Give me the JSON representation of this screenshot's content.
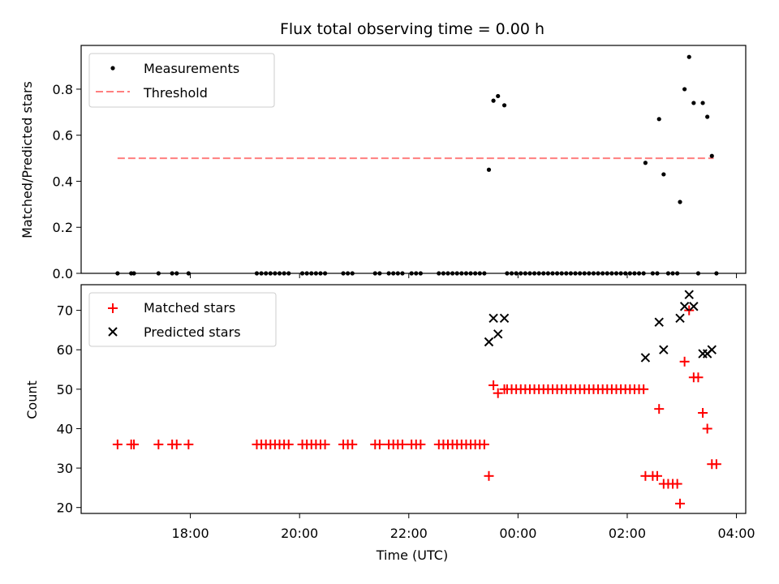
{
  "title": "Flux total observing time = 0.00 h",
  "chart_data": [
    {
      "type": "scatter",
      "panel": "top",
      "ylabel": "Matched/Predicted stars",
      "ylim": [
        0,
        0.99
      ],
      "yticks": [
        "0.0",
        "0.2",
        "0.4",
        "0.6",
        "0.8"
      ],
      "x_unit": "hours",
      "xlim": [
        16.0,
        4.17
      ],
      "legend": {
        "placement": "top-left",
        "entries": [
          "Measurements",
          "Threshold"
        ]
      },
      "threshold": {
        "name": "Threshold",
        "value": 0.5,
        "x_start": "16:40",
        "x_end": "03:35",
        "color": "#ff7f7f"
      },
      "series": [
        {
          "name": "Measurements",
          "color": "#000000",
          "points": [
            [
              "16:40",
              0
            ],
            [
              "16:55",
              0
            ],
            [
              "16:58",
              0
            ],
            [
              "17:25",
              0
            ],
            [
              "17:40",
              0
            ],
            [
              "17:45",
              0
            ],
            [
              "17:58",
              0
            ],
            [
              "19:13",
              0
            ],
            [
              "19:18",
              0
            ],
            [
              "19:23",
              0
            ],
            [
              "19:28",
              0
            ],
            [
              "19:33",
              0
            ],
            [
              "19:38",
              0
            ],
            [
              "19:43",
              0
            ],
            [
              "19:48",
              0
            ],
            [
              "20:03",
              0
            ],
            [
              "20:08",
              0
            ],
            [
              "20:13",
              0
            ],
            [
              "20:18",
              0
            ],
            [
              "20:23",
              0
            ],
            [
              "20:28",
              0
            ],
            [
              "20:48",
              0
            ],
            [
              "20:53",
              0
            ],
            [
              "20:58",
              0
            ],
            [
              "21:23",
              0
            ],
            [
              "21:28",
              0
            ],
            [
              "21:38",
              0
            ],
            [
              "21:43",
              0
            ],
            [
              "21:48",
              0
            ],
            [
              "21:53",
              0
            ],
            [
              "22:03",
              0
            ],
            [
              "22:08",
              0
            ],
            [
              "22:13",
              0
            ],
            [
              "22:33",
              0
            ],
            [
              "22:38",
              0
            ],
            [
              "22:43",
              0
            ],
            [
              "22:48",
              0
            ],
            [
              "22:53",
              0
            ],
            [
              "22:58",
              0
            ],
            [
              "23:03",
              0
            ],
            [
              "23:08",
              0
            ],
            [
              "23:13",
              0
            ],
            [
              "23:18",
              0
            ],
            [
              "23:23",
              0
            ],
            [
              "23:28",
              0.45
            ],
            [
              "23:33",
              0.75
            ],
            [
              "23:38",
              0.77
            ],
            [
              "23:45",
              0.73
            ],
            [
              "23:48",
              0
            ],
            [
              "23:53",
              0
            ],
            [
              "23:58",
              0
            ],
            [
              "00:03",
              0
            ],
            [
              "00:08",
              0
            ],
            [
              "00:13",
              0
            ],
            [
              "00:18",
              0
            ],
            [
              "00:23",
              0
            ],
            [
              "00:28",
              0
            ],
            [
              "00:33",
              0
            ],
            [
              "00:38",
              0
            ],
            [
              "00:43",
              0
            ],
            [
              "00:48",
              0
            ],
            [
              "00:53",
              0
            ],
            [
              "00:58",
              0
            ],
            [
              "01:03",
              0
            ],
            [
              "01:08",
              0
            ],
            [
              "01:13",
              0
            ],
            [
              "01:18",
              0
            ],
            [
              "01:23",
              0
            ],
            [
              "01:28",
              0
            ],
            [
              "01:33",
              0
            ],
            [
              "01:38",
              0
            ],
            [
              "01:43",
              0
            ],
            [
              "01:48",
              0
            ],
            [
              "01:53",
              0
            ],
            [
              "01:58",
              0
            ],
            [
              "02:03",
              0
            ],
            [
              "02:08",
              0
            ],
            [
              "02:13",
              0
            ],
            [
              "02:18",
              0
            ],
            [
              "02:20",
              0.48
            ],
            [
              "02:28",
              0
            ],
            [
              "02:33",
              0
            ],
            [
              "02:35",
              0.67
            ],
            [
              "02:40",
              0.43
            ],
            [
              "02:45",
              0
            ],
            [
              "02:50",
              0
            ],
            [
              "02:55",
              0
            ],
            [
              "02:58",
              0.31
            ],
            [
              "03:03",
              0.8
            ],
            [
              "03:08",
              0.94
            ],
            [
              "03:13",
              0.74
            ],
            [
              "03:18",
              0
            ],
            [
              "03:23",
              0.74
            ],
            [
              "03:28",
              0.68
            ],
            [
              "03:33",
              0.51
            ],
            [
              "03:38",
              0
            ]
          ]
        }
      ]
    },
    {
      "type": "scatter",
      "panel": "bottom",
      "xlabel": "Time (UTC)",
      "ylabel": "Count",
      "ylim": [
        18.5,
        76.5
      ],
      "yticks": [
        "20",
        "30",
        "40",
        "50",
        "60",
        "70"
      ],
      "xticks": [
        "18:00",
        "20:00",
        "22:00",
        "00:00",
        "02:00",
        "04:00"
      ],
      "legend": {
        "placement": "top-left",
        "entries": [
          "Matched stars",
          "Predicted stars"
        ]
      },
      "series": [
        {
          "name": "Matched stars",
          "marker": "+",
          "color": "#ff0000",
          "points": [
            [
              "16:40",
              36
            ],
            [
              "16:55",
              36
            ],
            [
              "16:58",
              36
            ],
            [
              "17:25",
              36
            ],
            [
              "17:40",
              36
            ],
            [
              "17:45",
              36
            ],
            [
              "17:58",
              36
            ],
            [
              "19:13",
              36
            ],
            [
              "19:18",
              36
            ],
            [
              "19:23",
              36
            ],
            [
              "19:28",
              36
            ],
            [
              "19:33",
              36
            ],
            [
              "19:38",
              36
            ],
            [
              "19:43",
              36
            ],
            [
              "19:48",
              36
            ],
            [
              "20:03",
              36
            ],
            [
              "20:08",
              36
            ],
            [
              "20:13",
              36
            ],
            [
              "20:18",
              36
            ],
            [
              "20:23",
              36
            ],
            [
              "20:28",
              36
            ],
            [
              "20:48",
              36
            ],
            [
              "20:53",
              36
            ],
            [
              "20:58",
              36
            ],
            [
              "21:23",
              36
            ],
            [
              "21:28",
              36
            ],
            [
              "21:38",
              36
            ],
            [
              "21:43",
              36
            ],
            [
              "21:48",
              36
            ],
            [
              "21:53",
              36
            ],
            [
              "22:03",
              36
            ],
            [
              "22:08",
              36
            ],
            [
              "22:13",
              36
            ],
            [
              "22:33",
              36
            ],
            [
              "22:38",
              36
            ],
            [
              "22:43",
              36
            ],
            [
              "22:48",
              36
            ],
            [
              "22:53",
              36
            ],
            [
              "22:58",
              36
            ],
            [
              "23:03",
              36
            ],
            [
              "23:08",
              36
            ],
            [
              "23:13",
              36
            ],
            [
              "23:18",
              36
            ],
            [
              "23:23",
              36
            ],
            [
              "23:28",
              28
            ],
            [
              "23:33",
              51
            ],
            [
              "23:38",
              49
            ],
            [
              "23:45",
              50
            ],
            [
              "23:48",
              50
            ],
            [
              "23:53",
              50
            ],
            [
              "23:58",
              50
            ],
            [
              "00:03",
              50
            ],
            [
              "00:08",
              50
            ],
            [
              "00:13",
              50
            ],
            [
              "00:18",
              50
            ],
            [
              "00:23",
              50
            ],
            [
              "00:28",
              50
            ],
            [
              "00:33",
              50
            ],
            [
              "00:38",
              50
            ],
            [
              "00:43",
              50
            ],
            [
              "00:48",
              50
            ],
            [
              "00:53",
              50
            ],
            [
              "00:58",
              50
            ],
            [
              "01:03",
              50
            ],
            [
              "01:08",
              50
            ],
            [
              "01:13",
              50
            ],
            [
              "01:18",
              50
            ],
            [
              "01:23",
              50
            ],
            [
              "01:28",
              50
            ],
            [
              "01:33",
              50
            ],
            [
              "01:38",
              50
            ],
            [
              "01:43",
              50
            ],
            [
              "01:48",
              50
            ],
            [
              "01:53",
              50
            ],
            [
              "01:58",
              50
            ],
            [
              "02:03",
              50
            ],
            [
              "02:08",
              50
            ],
            [
              "02:13",
              50
            ],
            [
              "02:18",
              50
            ],
            [
              "02:20",
              28
            ],
            [
              "02:28",
              28
            ],
            [
              "02:33",
              28
            ],
            [
              "02:35",
              45
            ],
            [
              "02:40",
              26
            ],
            [
              "02:45",
              26
            ],
            [
              "02:50",
              26
            ],
            [
              "02:55",
              26
            ],
            [
              "02:58",
              21
            ],
            [
              "03:03",
              57
            ],
            [
              "03:08",
              70
            ],
            [
              "03:13",
              53
            ],
            [
              "03:18",
              53
            ],
            [
              "03:23",
              44
            ],
            [
              "03:28",
              40
            ],
            [
              "03:33",
              31
            ],
            [
              "03:38",
              31
            ]
          ]
        },
        {
          "name": "Predicted stars",
          "marker": "x",
          "color": "#000000",
          "points": [
            [
              "23:28",
              62
            ],
            [
              "23:33",
              68
            ],
            [
              "23:38",
              64
            ],
            [
              "23:45",
              68
            ],
            [
              "02:20",
              58
            ],
            [
              "02:35",
              67
            ],
            [
              "02:40",
              60
            ],
            [
              "02:58",
              68
            ],
            [
              "03:03",
              71
            ],
            [
              "03:08",
              74
            ],
            [
              "03:13",
              71
            ],
            [
              "03:23",
              59
            ],
            [
              "03:28",
              59
            ],
            [
              "03:33",
              60
            ]
          ]
        }
      ]
    }
  ]
}
